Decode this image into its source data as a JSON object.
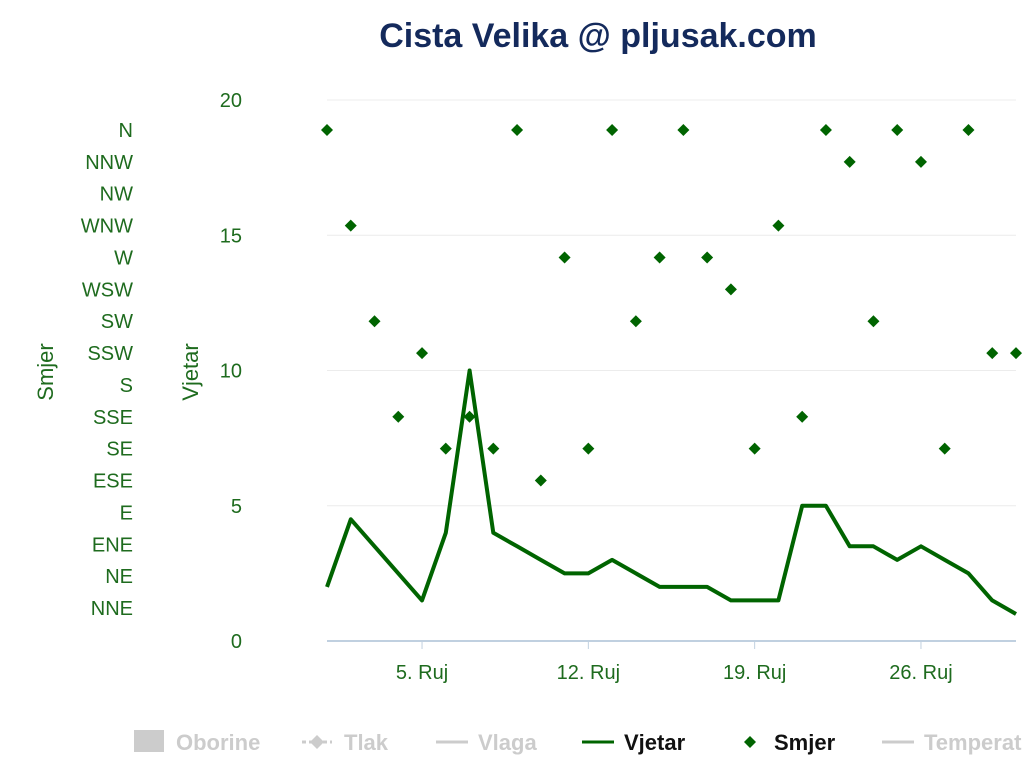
{
  "chart_data": {
    "type": "line",
    "title": "Cista Velika @ pljusak.com",
    "colors": {
      "series": "#006400",
      "title": "#142a5c",
      "axis_text": "#1e6b1e",
      "grid": "#ececec",
      "legend_inactive": "#cccccc"
    },
    "x_axis": {
      "type": "datetime",
      "range": [
        "2024-09-01",
        "2024-09-30"
      ],
      "tick_labels": [
        {
          "date": "2024-09-05",
          "label": "5. Ruj"
        },
        {
          "date": "2024-09-12",
          "label": "12. Ruj"
        },
        {
          "date": "2024-09-19",
          "label": "19. Ruj"
        },
        {
          "date": "2024-09-26",
          "label": "26. Ruj"
        }
      ]
    },
    "y_axis_wind": {
      "title": "Vjetar",
      "ylim": [
        0,
        20
      ],
      "tick_labels": [
        "0",
        "5",
        "10",
        "15",
        "20"
      ]
    },
    "y_axis_direction": {
      "title": "Smjer",
      "categories": [
        "NNE",
        "NE",
        "ENE",
        "E",
        "ESE",
        "SE",
        "SSE",
        "S",
        "SSW",
        "SW",
        "WSW",
        "W",
        "WNW",
        "NW",
        "NNW",
        "N"
      ]
    },
    "grid": true,
    "legend_position": "bottom",
    "legend": [
      {
        "name": "Oborine",
        "symbol": "column",
        "active": false
      },
      {
        "name": "Tlak",
        "symbol": "dashed-diamond",
        "active": false
      },
      {
        "name": "Vlaga",
        "symbol": "line",
        "active": false
      },
      {
        "name": "Vjetar",
        "symbol": "line",
        "active": true
      },
      {
        "name": "Smjer",
        "symbol": "diamond",
        "active": true
      },
      {
        "name": "Temperat",
        "symbol": "line",
        "active": false
      }
    ],
    "series": [
      {
        "name": "Vjetar",
        "kind": "line",
        "points": [
          [
            "2024-09-01",
            2
          ],
          [
            "2024-09-02",
            4.5
          ],
          [
            "2024-09-03",
            3.5
          ],
          [
            "2024-09-04",
            2.5
          ],
          [
            "2024-09-05",
            1.5
          ],
          [
            "2024-09-06",
            4
          ],
          [
            "2024-09-07",
            10
          ],
          [
            "2024-09-08",
            4
          ],
          [
            "2024-09-09",
            3.5
          ],
          [
            "2024-09-10",
            3
          ],
          [
            "2024-09-11",
            2.5
          ],
          [
            "2024-09-12",
            2.5
          ],
          [
            "2024-09-13",
            3
          ],
          [
            "2024-09-14",
            2.5
          ],
          [
            "2024-09-15",
            2
          ],
          [
            "2024-09-16",
            2
          ],
          [
            "2024-09-17",
            2
          ],
          [
            "2024-09-18",
            1.5
          ],
          [
            "2024-09-19",
            1.5
          ],
          [
            "2024-09-20",
            1.5
          ],
          [
            "2024-09-21",
            5
          ],
          [
            "2024-09-22",
            5
          ],
          [
            "2024-09-23",
            3.5
          ],
          [
            "2024-09-24",
            3.5
          ],
          [
            "2024-09-25",
            3
          ],
          [
            "2024-09-26",
            3.5
          ],
          [
            "2024-09-27",
            3
          ],
          [
            "2024-09-28",
            2.5
          ],
          [
            "2024-09-29",
            1.5
          ],
          [
            "2024-09-30",
            1
          ]
        ]
      },
      {
        "name": "Smjer",
        "kind": "scatter",
        "points": [
          [
            "2024-09-01",
            "N"
          ],
          [
            "2024-09-02",
            "WNW"
          ],
          [
            "2024-09-03",
            "SW"
          ],
          [
            "2024-09-04",
            "SSE"
          ],
          [
            "2024-09-05",
            "SSW"
          ],
          [
            "2024-09-06",
            "SE"
          ],
          [
            "2024-09-07",
            "SSE"
          ],
          [
            "2024-09-08",
            "SE"
          ],
          [
            "2024-09-09",
            "N"
          ],
          [
            "2024-09-10",
            "ESE"
          ],
          [
            "2024-09-11",
            "W"
          ],
          [
            "2024-09-12",
            "SE"
          ],
          [
            "2024-09-13",
            "N"
          ],
          [
            "2024-09-14",
            "SW"
          ],
          [
            "2024-09-15",
            "W"
          ],
          [
            "2024-09-16",
            "N"
          ],
          [
            "2024-09-17",
            "W"
          ],
          [
            "2024-09-18",
            "WSW"
          ],
          [
            "2024-09-19",
            "SE"
          ],
          [
            "2024-09-20",
            "WNW"
          ],
          [
            "2024-09-21",
            "SSE"
          ],
          [
            "2024-09-22",
            "N"
          ],
          [
            "2024-09-23",
            "NNW"
          ],
          [
            "2024-09-24",
            "SW"
          ],
          [
            "2024-09-25",
            "N"
          ],
          [
            "2024-09-26",
            "NNW"
          ],
          [
            "2024-09-27",
            "SE"
          ],
          [
            "2024-09-28",
            "N"
          ],
          [
            "2024-09-29",
            "SSW"
          ],
          [
            "2024-09-30",
            "SSW"
          ]
        ]
      }
    ]
  }
}
